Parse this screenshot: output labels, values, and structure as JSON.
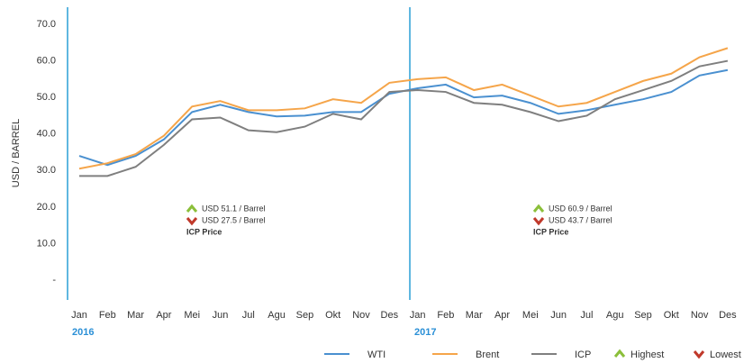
{
  "chart_data": {
    "type": "line",
    "y_label": "USD / BARREL",
    "categories": [
      "Jan",
      "Feb",
      "Mar",
      "Apr",
      "Mei",
      "Jun",
      "Jul",
      "Agu",
      "Sep",
      "Okt",
      "Nov",
      "Des",
      "Jan",
      "Feb",
      "Mar",
      "Apr",
      "Mei",
      "Jun",
      "Jul",
      "Agu",
      "Sep",
      "Okt",
      "Nov",
      "Des"
    ],
    "years": [
      "2016",
      "2017"
    ],
    "series": [
      {
        "name": "WTI",
        "color": "#4a90d0",
        "values": [
          34,
          31.5,
          34,
          38.5,
          46,
          48,
          46,
          44.8,
          45,
          46,
          46,
          51,
          52.5,
          53.5,
          50,
          50.5,
          48.5,
          45.5,
          46.5,
          48,
          49.5,
          51.5,
          56,
          57.5
        ]
      },
      {
        "name": "Brent",
        "color": "#f5a54a",
        "values": [
          30.5,
          32,
          34.5,
          39.5,
          47.5,
          49,
          46.5,
          46.5,
          47,
          49.5,
          48.5,
          54,
          55,
          55.5,
          52,
          53.5,
          50.5,
          47.5,
          48.5,
          51.5,
          54.5,
          56.5,
          61,
          63.5
        ]
      },
      {
        "name": "ICP",
        "color": "#7f7f7f",
        "values": [
          28.5,
          28.5,
          31,
          37,
          44,
          44.5,
          41,
          40.5,
          42,
          45.5,
          44,
          51.5,
          52,
          51.5,
          48.5,
          48,
          46,
          43.5,
          45,
          49.5,
          52,
          54.5,
          58.5,
          60
        ]
      }
    ],
    "legend_markers": [
      "Highest",
      "Lowest"
    ],
    "annotations": [
      {
        "highest": "USD 51.1 / Barrel",
        "lowest": "USD 27.5 / Barrel",
        "label": "ICP Price"
      },
      {
        "highest": "USD 60.9 / Barrel",
        "lowest": "USD 43.7 / Barrel",
        "label": "ICP Price"
      }
    ],
    "ylim": [
      0,
      70
    ],
    "yticks": [
      {
        "value": 0,
        "label": "-"
      },
      {
        "value": 10,
        "label": "10.0"
      },
      {
        "value": 20,
        "label": "20.0"
      },
      {
        "value": 30,
        "label": "30.0"
      },
      {
        "value": 40,
        "label": "40.0"
      },
      {
        "value": 50,
        "label": "50.0"
      },
      {
        "value": 60,
        "label": "60.0"
      },
      {
        "value": 70,
        "label": "70.0"
      }
    ]
  }
}
